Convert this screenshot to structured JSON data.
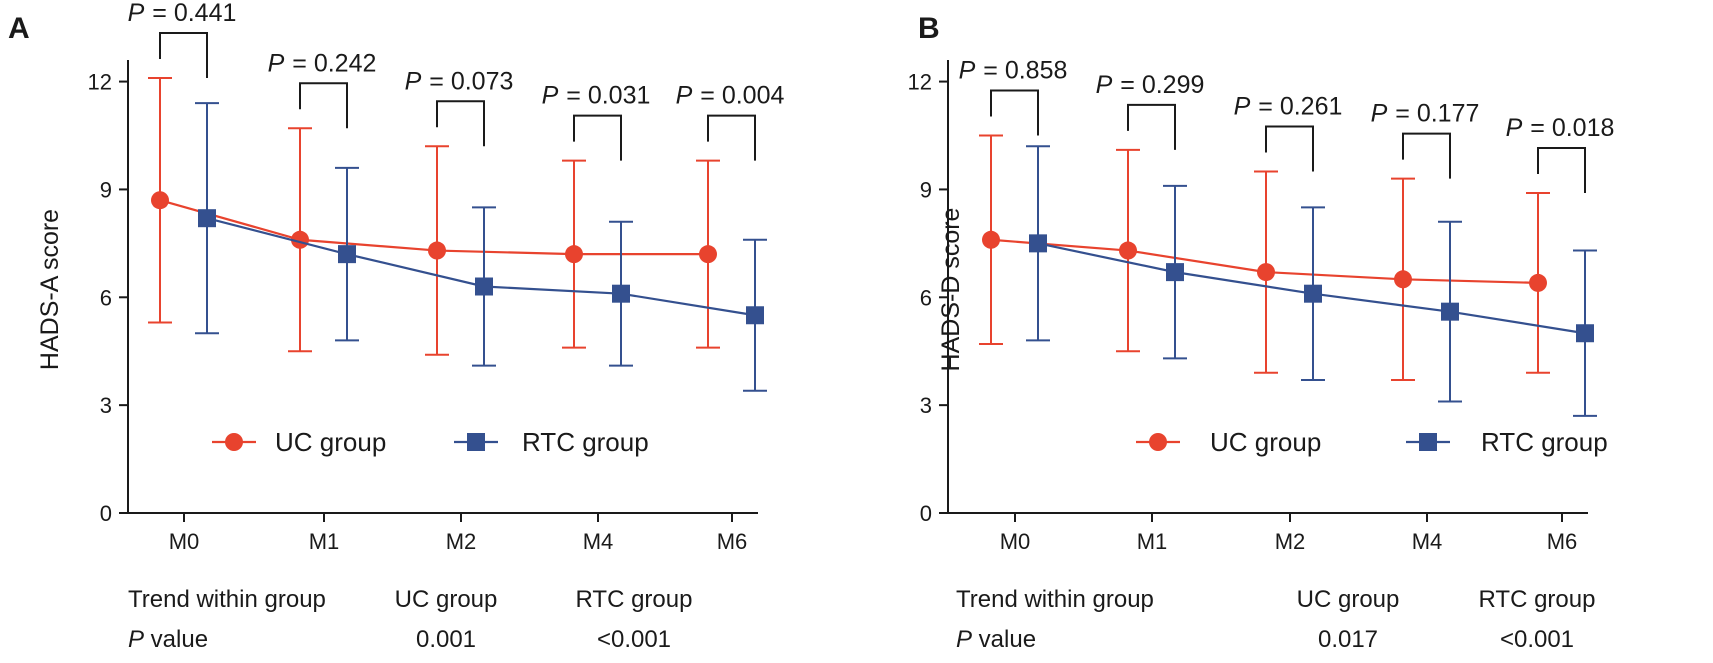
{
  "chart_data": [
    {
      "type": "line",
      "panel_label": "A",
      "ylabel": "HADS-A score",
      "xlabel": "",
      "categories": [
        "M0",
        "M1",
        "M2",
        "M4",
        "M6"
      ],
      "ylim": [
        0,
        12.6
      ],
      "yticks": [
        0,
        3,
        6,
        9,
        12
      ],
      "grid": false,
      "legend": "inside-lower-middle",
      "series": [
        {
          "name": "UC group",
          "color": "#e8432e",
          "marker": "circle",
          "values": [
            8.7,
            7.6,
            7.3,
            7.2,
            7.2
          ],
          "err_upper": [
            12.1,
            10.7,
            10.2,
            9.8,
            9.8
          ],
          "err_lower": [
            5.3,
            4.5,
            4.4,
            4.6,
            4.6
          ]
        },
        {
          "name": "RTC group",
          "color": "#34508f",
          "marker": "square",
          "values": [
            8.2,
            7.2,
            6.3,
            6.1,
            5.5
          ],
          "err_upper": [
            11.4,
            9.6,
            8.5,
            8.1,
            7.6
          ],
          "err_lower": [
            5.0,
            4.8,
            4.1,
            4.1,
            3.4
          ]
        }
      ],
      "pvalue_prefix": "P",
      "pvalues": [
        "= 0.441",
        "= 0.242",
        "= 0.073",
        "= 0.031",
        "= 0.004"
      ],
      "trend": {
        "row1": [
          "Trend within group",
          "UC group",
          "RTC group"
        ],
        "row2_label_italic": "P",
        "row2_label_rest": " value",
        "row2_values": [
          "0.001",
          "<0.001"
        ]
      }
    },
    {
      "type": "line",
      "panel_label": "B",
      "ylabel": "HADS-D score",
      "xlabel": "",
      "categories": [
        "M0",
        "M1",
        "M2",
        "M4",
        "M6"
      ],
      "ylim": [
        0,
        12.6
      ],
      "yticks": [
        0,
        3,
        6,
        9,
        12
      ],
      "grid": false,
      "legend": "inside-lower-middle",
      "series": [
        {
          "name": "UC group",
          "color": "#e8432e",
          "marker": "circle",
          "values": [
            7.6,
            7.3,
            6.7,
            6.5,
            6.4
          ],
          "err_upper": [
            10.5,
            10.1,
            9.5,
            9.3,
            8.9
          ],
          "err_lower": [
            4.7,
            4.5,
            3.9,
            3.7,
            3.9
          ]
        },
        {
          "name": "RTC group",
          "color": "#34508f",
          "marker": "square",
          "values": [
            7.5,
            6.7,
            6.1,
            5.6,
            5.0
          ],
          "err_upper": [
            10.2,
            9.1,
            8.5,
            8.1,
            7.3
          ],
          "err_lower": [
            4.8,
            4.3,
            3.7,
            3.1,
            2.7
          ]
        }
      ],
      "pvalue_prefix": "P",
      "pvalues": [
        "= 0.858",
        "= 0.299",
        "= 0.261",
        "= 0.177",
        "= 0.018"
      ],
      "trend": {
        "row1": [
          "Trend within group",
          "UC group",
          "RTC group"
        ],
        "row2_label_italic": "P",
        "row2_label_rest": " value",
        "row2_values": [
          "0.017",
          "<0.001"
        ]
      }
    }
  ]
}
